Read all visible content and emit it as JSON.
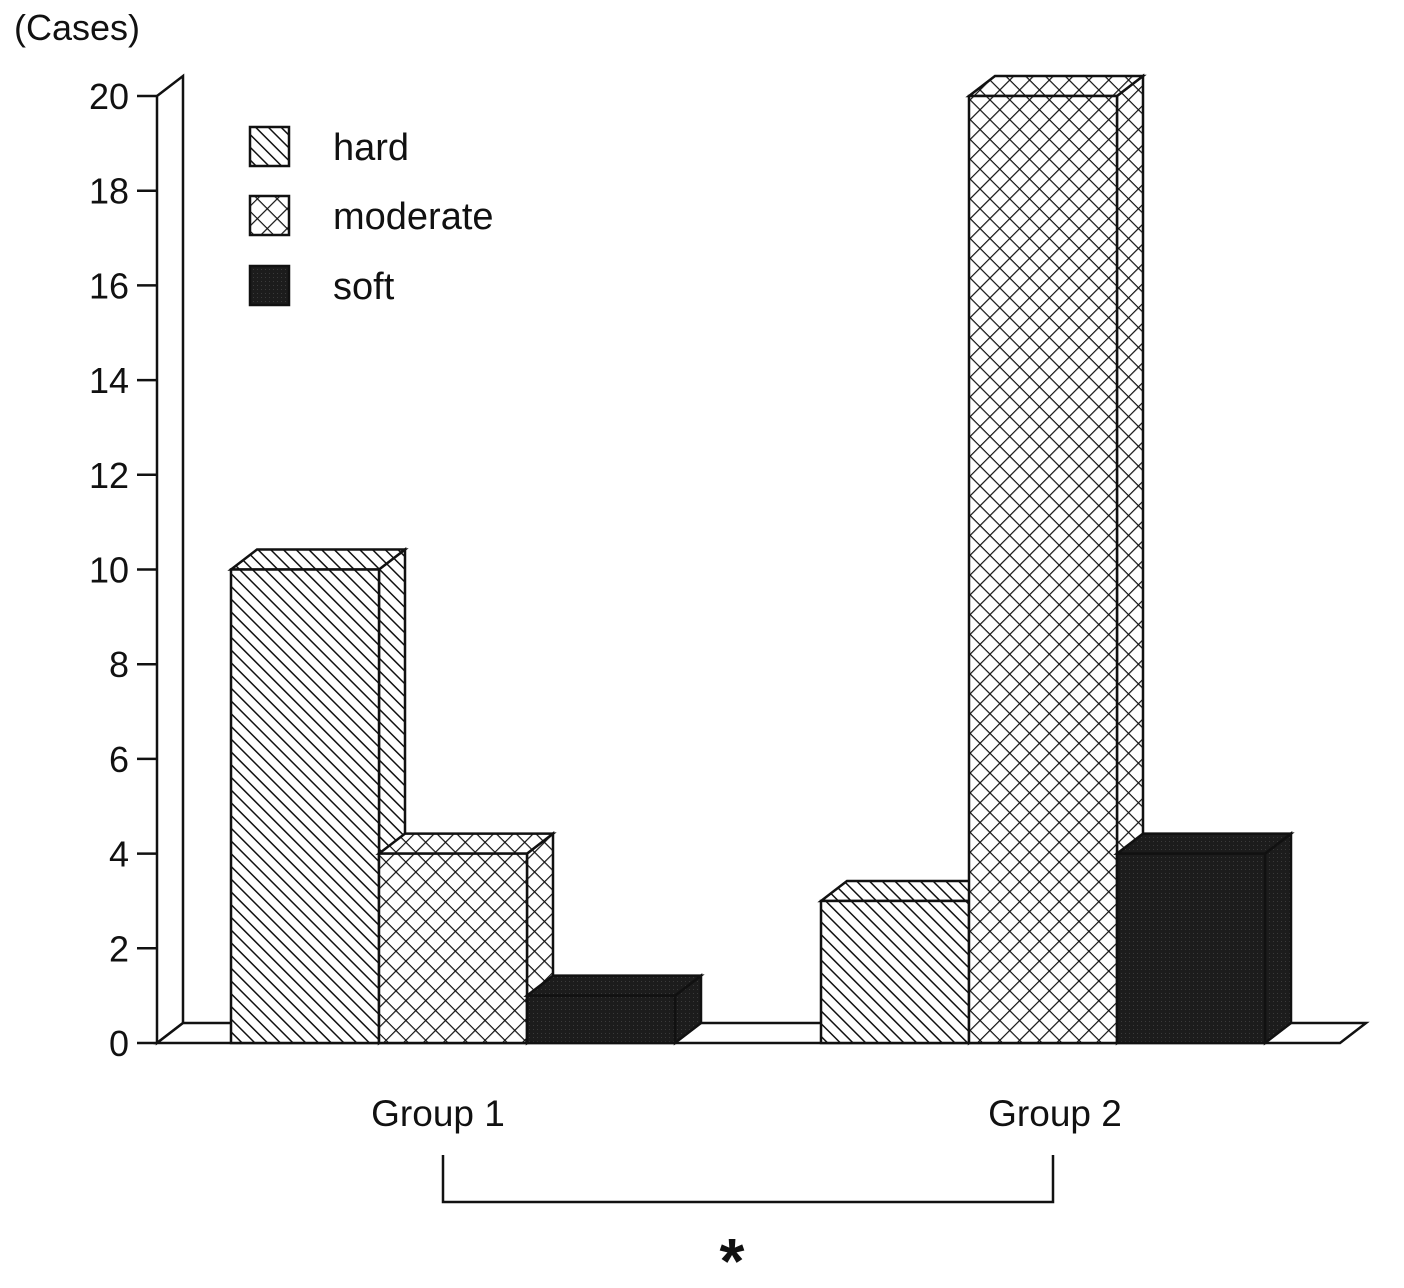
{
  "chart_data": {
    "type": "bar",
    "unit_label": "(Cases)",
    "categories": [
      "Group 1",
      "Group 2"
    ],
    "series": [
      {
        "name": "hard",
        "pattern": "diagonal-hatch",
        "values": [
          10,
          3
        ]
      },
      {
        "name": "moderate",
        "pattern": "crosshatch",
        "values": [
          4,
          20
        ]
      },
      {
        "name": "soft",
        "pattern": "solid-dark",
        "values": [
          1,
          4
        ]
      }
    ],
    "ylim": [
      0,
      20
    ],
    "yticks": [
      0,
      2,
      4,
      6,
      8,
      10,
      12,
      14,
      16,
      18,
      20
    ],
    "grid": false,
    "legend_position": "top-left",
    "three_d": true,
    "significance": {
      "between": [
        "Group 1",
        "Group 2"
      ],
      "marker": "*"
    }
  }
}
